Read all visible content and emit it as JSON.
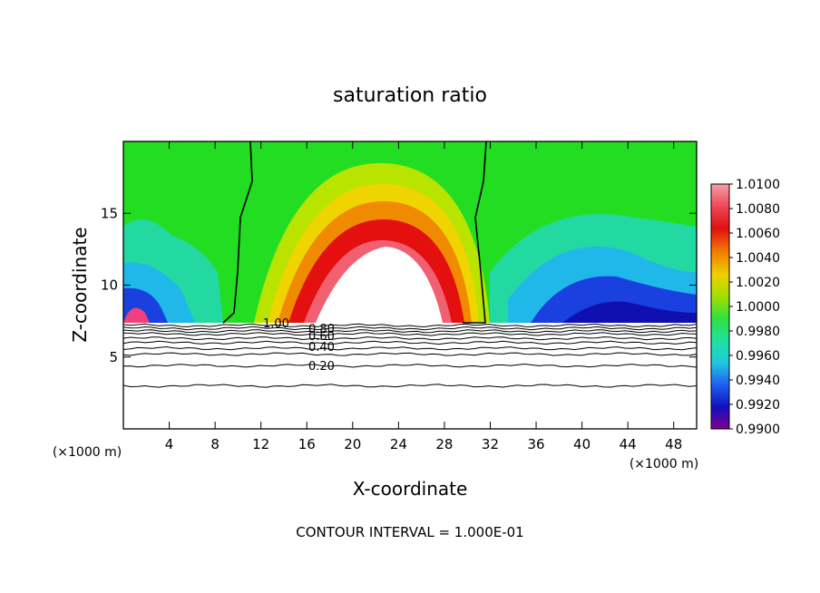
{
  "chart_data": {
    "type": "heatmap",
    "title": "saturation ratio",
    "xlabel": "X-coordinate",
    "ylabel": "Z-coordinate",
    "x_unit_left": "(×1000 m)",
    "x_unit_right": "(×1000 m)",
    "xlim": [
      0,
      50
    ],
    "ylim": [
      0,
      20
    ],
    "xticks": [
      4,
      8,
      12,
      16,
      20,
      24,
      28,
      32,
      36,
      40,
      44,
      48
    ],
    "yticks": [
      5,
      10,
      15
    ],
    "colorbar": {
      "labels": [
        "1.0100",
        "1.0080",
        "1.0060",
        "1.0040",
        "1.0020",
        "1.0000",
        "0.9980",
        "0.9960",
        "0.9940",
        "0.9920",
        "0.9900"
      ],
      "min": 0.99,
      "max": 1.01
    },
    "contour_labels": [
      "1.00",
      "0.80",
      "0.60",
      "0.40",
      "0.20"
    ],
    "contour_levels_below_cloud": [
      0.2,
      0.4,
      0.6,
      0.8,
      1.0
    ],
    "footer": "CONTOUR INTERVAL = 1.000E-01"
  }
}
